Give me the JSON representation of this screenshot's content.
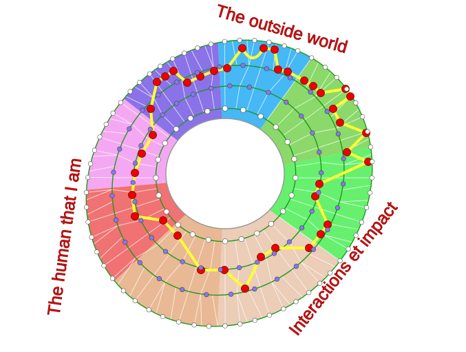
{
  "labels": {
    "top": "The outside world",
    "left": "The human that I am",
    "right": "Interactions et impact"
  },
  "sectors": [
    {
      "name": "blue",
      "color": "#45b8f5"
    },
    {
      "name": "light-green",
      "color": "#8ad96a"
    },
    {
      "name": "bright-green",
      "color": "#66f06e"
    },
    {
      "name": "light-peach",
      "color": "#ebcdb8"
    },
    {
      "name": "dark-peach",
      "color": "#e8b994"
    },
    {
      "name": "red",
      "color": "#f07272"
    },
    {
      "name": "pink",
      "color": "#f5a8f2"
    },
    {
      "name": "purple",
      "color": "#8a72e8"
    }
  ],
  "colors": {
    "ring_line": "#1a9a1a",
    "path": "#ffff33",
    "path_node": "#ee0000",
    "inner_node": "#8877ee",
    "edge_node": "#ffffff"
  }
}
